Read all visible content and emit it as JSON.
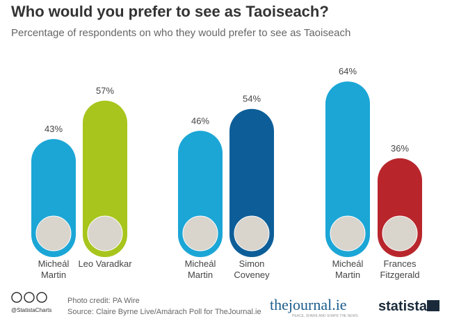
{
  "chart_data": {
    "type": "bar",
    "title": "Who would you prefer to see as Taoiseach?",
    "subtitle": "Percentage of respondents on who they would prefer to see as Taoiseach",
    "categories": [
      "Micheál Martin",
      "Leo Varadkar",
      "Micheál Martin",
      "Simon Coveney",
      "Micheál Martin",
      "Frances Fitzgerald"
    ],
    "values": [
      43,
      57,
      46,
      54,
      64,
      36
    ],
    "value_labels": [
      "43%",
      "57%",
      "46%",
      "54%",
      "64%",
      "36%"
    ],
    "colors": [
      "#1ba6d6",
      "#a7c51c",
      "#1ba6d6",
      "#0d5e98",
      "#1ba6d6",
      "#b8262c"
    ]
  },
  "footer": {
    "handle": "@StatistaCharts",
    "credit": "Photo credit: PA Wire",
    "source": "Source: Claire Byrne Live/Amárach Poll for TheJournal.ie",
    "journal": "thejournal.ie",
    "tagline": "PEACE, SHARE AND SHAPE THE NEWS",
    "brand": "statista"
  }
}
